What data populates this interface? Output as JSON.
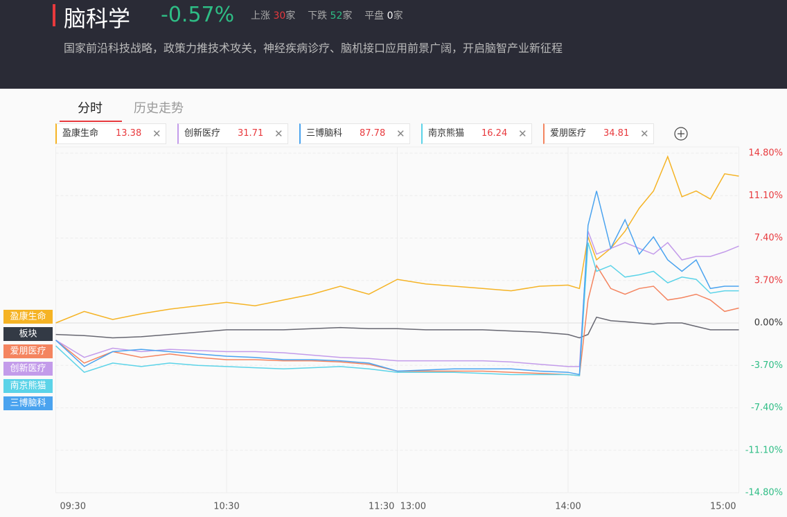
{
  "header": {
    "title": "脑科学",
    "change": "-0.57%",
    "up_label": "上涨",
    "up_count": "30",
    "down_label": "下跌",
    "down_count": "52",
    "flat_label": "平盘",
    "flat_count": "0",
    "unit": "家",
    "description": "国家前沿科技战略，政策力推技术攻关，神经疾病诊疗、脑机接口应用前景广阔，开启脑智产业新征程"
  },
  "tabs": [
    "分时",
    "历史走势"
  ],
  "chips": [
    {
      "name": "盈康生命",
      "price": "13.38",
      "color": "#f5b324"
    },
    {
      "name": "创新医疗",
      "price": "31.71",
      "color": "#c39bea"
    },
    {
      "name": "三博脑科",
      "price": "87.78",
      "color": "#4aa3ef"
    },
    {
      "name": "南京熊猫",
      "price": "16.24",
      "color": "#5bd3e8"
    },
    {
      "name": "爱朋医疗",
      "price": "34.81",
      "color": "#f4845f"
    }
  ],
  "chart_data": {
    "type": "line",
    "x": [
      0,
      10,
      20,
      30,
      40,
      50,
      60,
      70,
      80,
      90,
      100,
      110,
      120,
      130,
      140,
      150,
      160,
      170,
      180,
      184,
      187,
      190,
      195,
      200,
      205,
      210,
      215,
      220,
      225,
      230,
      235,
      240
    ],
    "xlim": [
      0,
      240
    ],
    "xticks": [
      {
        "value": 0,
        "label": "09:30"
      },
      {
        "value": 60,
        "label": "10:30"
      },
      {
        "value": 120,
        "label": "11:30  13:00"
      },
      {
        "value": 180,
        "label": "14:00"
      },
      {
        "value": 240,
        "label": "15:00"
      }
    ],
    "ylim": [
      -14.8,
      14.8
    ],
    "yticks": [
      {
        "value": 14.8,
        "label": "14.80%"
      },
      {
        "value": 11.1,
        "label": "11.10%"
      },
      {
        "value": 7.4,
        "label": "7.40%"
      },
      {
        "value": 3.7,
        "label": "3.70%"
      },
      {
        "value": 0,
        "label": "0.00%"
      },
      {
        "value": -3.7,
        "label": "-3.70%"
      },
      {
        "value": -7.4,
        "label": "-7.40%"
      },
      {
        "value": -11.1,
        "label": "-11.10%"
      },
      {
        "value": -14.8,
        "label": "-14.80%"
      }
    ],
    "grid": true,
    "series": [
      {
        "name": "盈康生命",
        "color": "#f5b324",
        "values": [
          0.0,
          1.0,
          0.3,
          0.8,
          1.2,
          1.5,
          1.8,
          1.5,
          2.0,
          2.5,
          3.2,
          2.5,
          3.8,
          3.4,
          3.2,
          3.0,
          2.8,
          3.2,
          3.3,
          3.0,
          7.5,
          5.5,
          6.5,
          8.0,
          10.0,
          11.5,
          14.5,
          11.0,
          11.5,
          10.8,
          13.0,
          12.8
        ]
      },
      {
        "name": "板块",
        "color": "#666670",
        "values": [
          -1.0,
          -1.1,
          -1.3,
          -1.2,
          -1.0,
          -0.8,
          -0.6,
          -0.6,
          -0.6,
          -0.5,
          -0.4,
          -0.5,
          -0.5,
          -0.6,
          -0.6,
          -0.6,
          -0.7,
          -0.8,
          -1.0,
          -1.3,
          -1.0,
          0.5,
          0.2,
          0.1,
          0.0,
          -0.1,
          0.0,
          0.0,
          -0.3,
          -0.6,
          -0.6,
          -0.6
        ]
      },
      {
        "name": "爱朋医疗",
        "color": "#f4845f",
        "values": [
          -1.5,
          -3.5,
          -2.5,
          -3.0,
          -2.7,
          -3.0,
          -3.2,
          -3.2,
          -3.3,
          -3.3,
          -3.4,
          -3.6,
          -4.2,
          -4.2,
          -4.2,
          -4.2,
          -4.3,
          -4.4,
          -4.5,
          -4.6,
          2.0,
          5.0,
          3.0,
          2.5,
          3.0,
          3.2,
          2.0,
          2.2,
          2.5,
          2.0,
          1.0,
          1.3
        ]
      },
      {
        "name": "创新医疗",
        "color": "#c39bea",
        "values": [
          -1.5,
          -3.0,
          -2.2,
          -2.5,
          -2.3,
          -2.4,
          -2.5,
          -2.5,
          -2.6,
          -2.8,
          -3.0,
          -3.1,
          -3.3,
          -3.3,
          -3.3,
          -3.3,
          -3.4,
          -3.6,
          -3.8,
          -3.8,
          8.0,
          6.0,
          6.5,
          7.0,
          6.5,
          6.0,
          7.0,
          5.5,
          5.8,
          5.8,
          6.2,
          6.7
        ]
      },
      {
        "name": "南京熊猫",
        "color": "#5bd3e8",
        "values": [
          -2.0,
          -4.3,
          -3.5,
          -3.8,
          -3.5,
          -3.7,
          -3.8,
          -3.9,
          -4.0,
          -3.9,
          -3.8,
          -4.0,
          -4.3,
          -4.3,
          -4.3,
          -4.4,
          -4.5,
          -4.5,
          -4.5,
          -4.6,
          7.0,
          4.5,
          5.0,
          4.0,
          4.2,
          4.5,
          3.5,
          4.0,
          3.8,
          2.6,
          2.8,
          2.8
        ]
      },
      {
        "name": "三博脑科",
        "color": "#4aa3ef",
        "values": [
          -1.5,
          -3.8,
          -2.5,
          -2.3,
          -2.5,
          -2.7,
          -2.9,
          -3.0,
          -3.2,
          -3.2,
          -3.3,
          -3.5,
          -4.2,
          -4.1,
          -4.0,
          -4.0,
          -4.0,
          -4.2,
          -4.3,
          -4.5,
          8.5,
          11.5,
          6.5,
          9.0,
          6.0,
          7.5,
          5.5,
          4.5,
          5.5,
          3.0,
          3.2,
          3.2
        ]
      }
    ]
  }
}
